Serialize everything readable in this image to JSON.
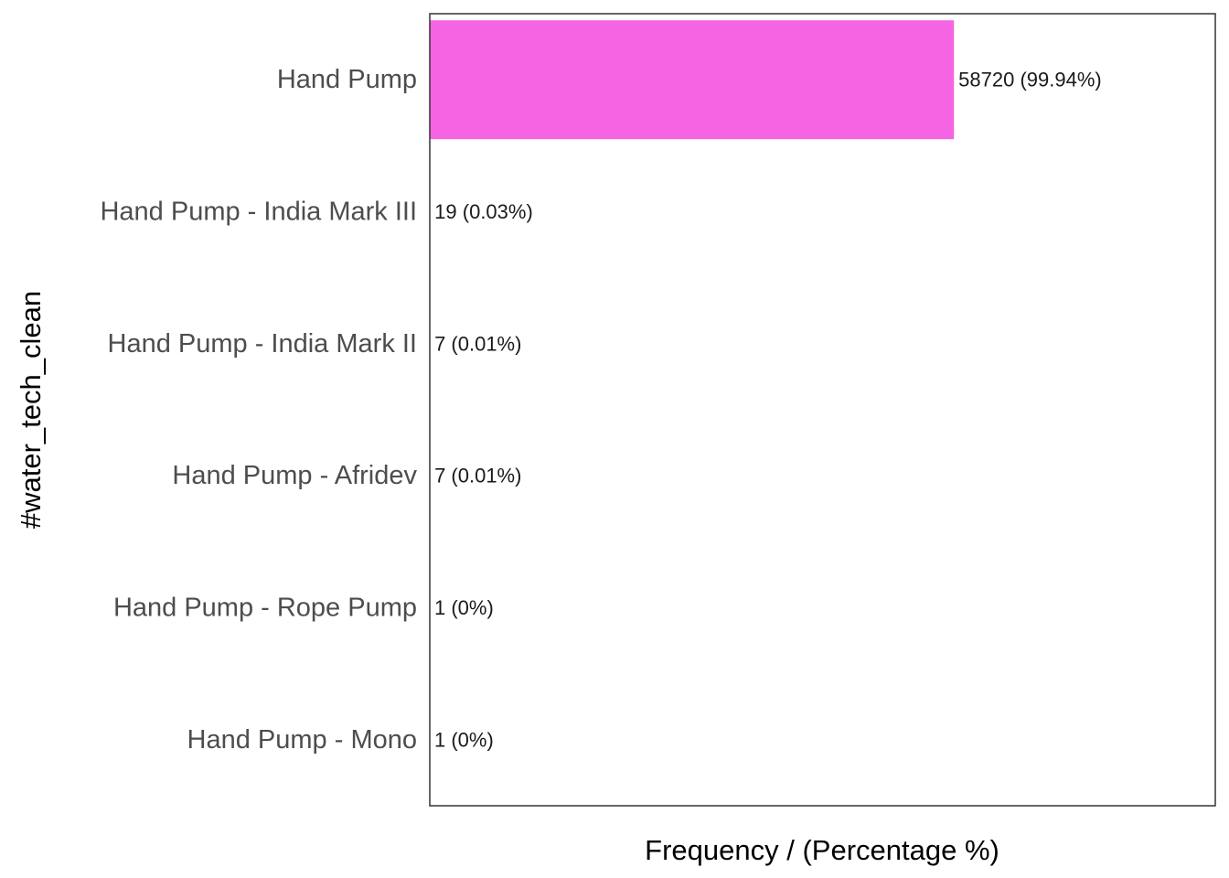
{
  "chart_data": {
    "type": "bar",
    "orientation": "horizontal",
    "title": "",
    "xlabel": "Frequency / (Percentage %)",
    "ylabel": "#water_tech_clean",
    "categories": [
      "Hand Pump",
      "Hand Pump - India Mark III",
      "Hand Pump - India Mark II",
      "Hand Pump - Afridev",
      "Hand Pump - Rope Pump",
      "Hand Pump - Mono"
    ],
    "values": [
      58720,
      19,
      7,
      7,
      1,
      1
    ],
    "data_labels": [
      "58720 (99.94%)",
      "19 (0.03%)",
      "7 (0.01%)",
      "7 (0.01%)",
      "1 (0%)",
      "1 (0%)"
    ],
    "xlim": [
      0,
      88000
    ],
    "grid": false,
    "legend": "none",
    "bar_color": "#f564e3",
    "panel_border_color": "#333333"
  }
}
